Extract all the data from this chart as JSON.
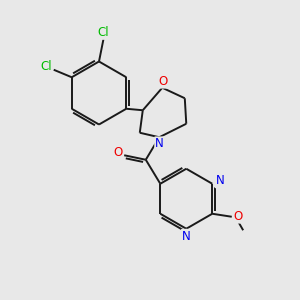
{
  "background_color": "#e8e8e8",
  "bond_color": "#1a1a1a",
  "atom_colors": {
    "Cl": "#00bb00",
    "O": "#ee0000",
    "N": "#0000ee",
    "C": "#1a1a1a"
  },
  "line_width": 1.4,
  "figsize": [
    3.0,
    3.0
  ],
  "dpi": 100
}
